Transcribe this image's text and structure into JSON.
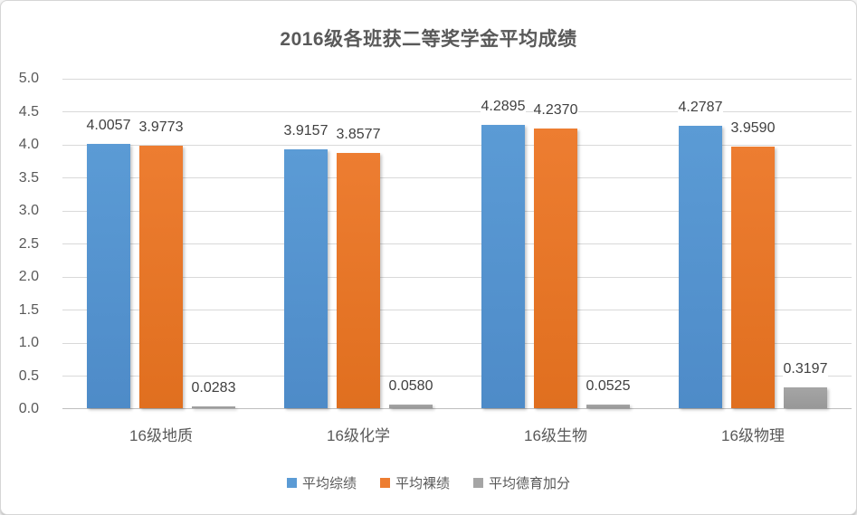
{
  "chart_data": {
    "type": "bar",
    "title": "2016级各班获二等奖学金平均成绩",
    "categories": [
      "16级地质",
      "16级化学",
      "16级生物",
      "16级物理"
    ],
    "series": [
      {
        "name": "平均综绩",
        "color": "#5B9BD5",
        "color_dark": "#4E8BC8",
        "values": [
          4.0057,
          3.9157,
          4.2895,
          4.2787
        ],
        "labels": [
          "4.0057",
          "3.9157",
          "4.2895",
          "4.2787"
        ]
      },
      {
        "name": "平均裸绩",
        "color": "#ED7D31",
        "color_dark": "#E06F1F",
        "values": [
          3.9773,
          3.8577,
          4.237,
          3.959
        ],
        "labels": [
          "3.9773",
          "3.8577",
          "4.2370",
          "3.9590"
        ]
      },
      {
        "name": "平均德育加分",
        "color": "#A5A5A5",
        "color_dark": "#989898",
        "values": [
          0.0283,
          0.058,
          0.0525,
          0.3197
        ],
        "labels": [
          "0.0283",
          "0.0580",
          "0.0525",
          "0.3197"
        ]
      }
    ],
    "ylim": [
      0,
      5
    ],
    "yticks": [
      "0.0",
      "0.5",
      "1.0",
      "1.5",
      "2.0",
      "2.5",
      "3.0",
      "3.5",
      "4.0",
      "4.5",
      "5.0"
    ],
    "grid": true,
    "legend_position": "bottom",
    "colors": {
      "title_text": "#595959",
      "axis_text": "#595959",
      "data_label_text": "#404040",
      "gridline": "#D9D9D9",
      "axis_line": "#BFBFBF",
      "background": "#FFFFFF"
    }
  }
}
